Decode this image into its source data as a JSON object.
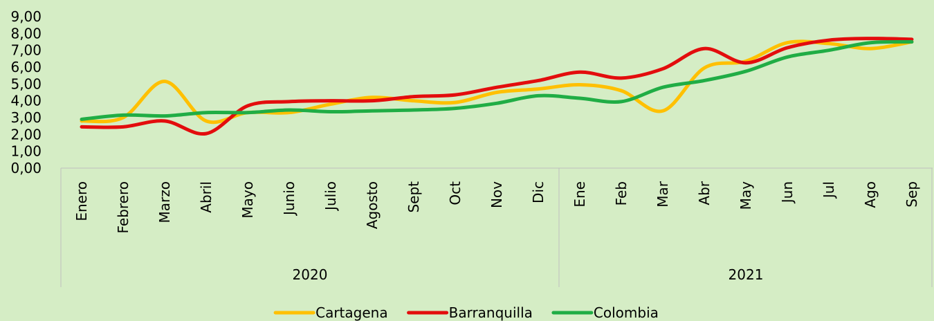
{
  "chart_data": {
    "type": "line",
    "groups": [
      {
        "name": "2020",
        "categories": [
          "Enero",
          "Febrero",
          "Marzo",
          "Abril",
          "Mayo",
          "Junio",
          "Julio",
          "Agosto",
          "Sept",
          "Oct",
          "Nov",
          "Dic"
        ]
      },
      {
        "name": "2021",
        "categories": [
          "Ene",
          "Feb",
          "Mar",
          "Abr",
          "May",
          "Jun",
          "Jul",
          "Ago",
          "Sep"
        ]
      }
    ],
    "series": [
      {
        "name": "Cartagena",
        "color": "#ffc000",
        "values": [
          2.8,
          3.0,
          5.15,
          2.8,
          3.3,
          3.3,
          3.8,
          4.2,
          4.0,
          3.9,
          4.5,
          4.7,
          4.95,
          4.6,
          3.4,
          5.95,
          6.35,
          7.45,
          7.4,
          7.1,
          7.5
        ]
      },
      {
        "name": "Barranquilla",
        "color": "#e30d0d",
        "values": [
          2.45,
          2.45,
          2.8,
          2.05,
          3.7,
          3.95,
          4.0,
          4.0,
          4.25,
          4.35,
          4.8,
          5.2,
          5.7,
          5.35,
          5.9,
          7.1,
          6.25,
          7.15,
          7.6,
          7.7,
          7.65
        ]
      },
      {
        "name": "Colombia",
        "color": "#20ad45",
        "values": [
          2.9,
          3.15,
          3.1,
          3.3,
          3.3,
          3.45,
          3.35,
          3.4,
          3.45,
          3.55,
          3.85,
          4.3,
          4.15,
          3.95,
          4.8,
          5.2,
          5.75,
          6.6,
          7.0,
          7.45,
          7.5
        ]
      }
    ],
    "ylim": [
      0,
      9
    ],
    "yticks": [
      {
        "value": 0,
        "label": "0,00"
      },
      {
        "value": 1,
        "label": "1,00"
      },
      {
        "value": 2,
        "label": "2,00"
      },
      {
        "value": 3,
        "label": "3,00"
      },
      {
        "value": 4,
        "label": "4,00"
      },
      {
        "value": 5,
        "label": "5,00"
      },
      {
        "value": 6,
        "label": "6,00"
      },
      {
        "value": 7,
        "label": "7,00"
      },
      {
        "value": 8,
        "label": "8,00"
      },
      {
        "value": 9,
        "label": "9,00"
      }
    ],
    "legend": "bottom"
  }
}
